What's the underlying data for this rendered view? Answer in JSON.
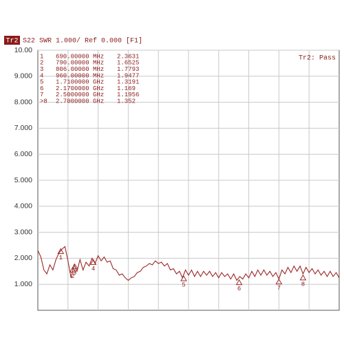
{
  "chart_data": {
    "type": "line",
    "trace_name": "Tr2",
    "title": "S22 SWR 1.000/ Ref 0.000 [F1]",
    "status": "Tr2: Pass",
    "color": "#9b2626",
    "grid": true,
    "xlim": [
      0.5,
      3.0
    ],
    "ylim": [
      0,
      10
    ],
    "yticks": [
      {
        "value": 10,
        "label": "10.00"
      },
      {
        "value": 9,
        "label": "9.000"
      },
      {
        "value": 8,
        "label": "8.000"
      },
      {
        "value": 7,
        "label": "7.000"
      },
      {
        "value": 6,
        "label": "6.000"
      },
      {
        "value": 5,
        "label": "5.000"
      },
      {
        "value": 4,
        "label": "4.000"
      },
      {
        "value": 3,
        "label": "3.000"
      },
      {
        "value": 2,
        "label": "2.000"
      },
      {
        "value": 1,
        "label": "1.000"
      }
    ],
    "x": [
      0.5,
      0.525,
      0.55,
      0.575,
      0.6,
      0.625,
      0.65,
      0.675,
      0.7,
      0.725,
      0.75,
      0.775,
      0.8,
      0.825,
      0.85,
      0.875,
      0.9,
      0.925,
      0.95,
      0.975,
      1.0,
      1.025,
      1.05,
      1.075,
      1.1,
      1.125,
      1.15,
      1.175,
      1.2,
      1.225,
      1.25,
      1.275,
      1.3,
      1.325,
      1.35,
      1.375,
      1.4,
      1.425,
      1.45,
      1.475,
      1.5,
      1.525,
      1.55,
      1.575,
      1.6,
      1.625,
      1.65,
      1.675,
      1.7,
      1.725,
      1.75,
      1.775,
      1.8,
      1.825,
      1.85,
      1.875,
      1.9,
      1.925,
      1.95,
      1.975,
      2.0,
      2.025,
      2.05,
      2.075,
      2.1,
      2.125,
      2.15,
      2.175,
      2.2,
      2.225,
      2.25,
      2.275,
      2.3,
      2.325,
      2.35,
      2.375,
      2.4,
      2.425,
      2.45,
      2.475,
      2.5,
      2.525,
      2.55,
      2.575,
      2.6,
      2.625,
      2.65,
      2.675,
      2.7,
      2.725,
      2.75,
      2.775,
      2.8,
      2.825,
      2.85,
      2.875,
      2.9,
      2.925,
      2.95,
      2.975,
      3.0
    ],
    "values": [
      2.3,
      2.05,
      1.55,
      1.4,
      1.75,
      1.55,
      1.95,
      2.2,
      2.35,
      2.45,
      1.9,
      1.25,
      1.75,
      1.5,
      1.95,
      1.55,
      1.85,
      1.7,
      2.0,
      1.8,
      2.1,
      1.9,
      2.05,
      1.85,
      1.9,
      1.6,
      1.55,
      1.35,
      1.4,
      1.25,
      1.15,
      1.25,
      1.3,
      1.45,
      1.5,
      1.65,
      1.7,
      1.8,
      1.75,
      1.9,
      1.8,
      1.85,
      1.7,
      1.8,
      1.55,
      1.6,
      1.4,
      1.5,
      1.25,
      1.55,
      1.35,
      1.55,
      1.3,
      1.5,
      1.3,
      1.5,
      1.35,
      1.5,
      1.3,
      1.45,
      1.25,
      1.45,
      1.3,
      1.4,
      1.2,
      1.4,
      1.15,
      1.3,
      1.2,
      1.4,
      1.25,
      1.5,
      1.3,
      1.55,
      1.35,
      1.55,
      1.35,
      1.5,
      1.3,
      1.45,
      1.2,
      1.55,
      1.4,
      1.65,
      1.45,
      1.7,
      1.5,
      1.7,
      1.4,
      1.65,
      1.45,
      1.6,
      1.4,
      1.55,
      1.35,
      1.5,
      1.3,
      1.5,
      1.3,
      1.45,
      1.25
    ],
    "markers": [
      {
        "id": "1",
        "tag": "1",
        "freq": {
          "value": 0.69,
          "label": "690.00000 MHz"
        },
        "value": 2.3631
      },
      {
        "id": "2",
        "tag": "2",
        "freq": {
          "value": 0.79,
          "label": "790.00000 MHz"
        },
        "value": 1.6525
      },
      {
        "id": "3",
        "tag": "3",
        "freq": {
          "value": 0.806,
          "label": "806.00000 MHz"
        },
        "value": 1.7793
      },
      {
        "id": "4",
        "tag": "4",
        "freq": {
          "value": 0.96,
          "label": "960.00000 MHz"
        },
        "value": 1.9477
      },
      {
        "id": "5",
        "tag": "5",
        "freq": {
          "value": 1.71,
          "label": "1.7100000 GHz"
        },
        "value": 1.3191
      },
      {
        "id": "6",
        "tag": "6",
        "freq": {
          "value": 2.17,
          "label": "2.1700000 GHz"
        },
        "value": 1.169
      },
      {
        "id": "7",
        "tag": "7",
        "freq": {
          "value": 2.5,
          "label": "2.5000000 GHz"
        },
        "value": 1.1956
      },
      {
        "id": ">8",
        "tag": "8",
        "freq": {
          "value": 2.7,
          "label": "2.7000000 GHz"
        },
        "value": 1.352
      }
    ]
  }
}
